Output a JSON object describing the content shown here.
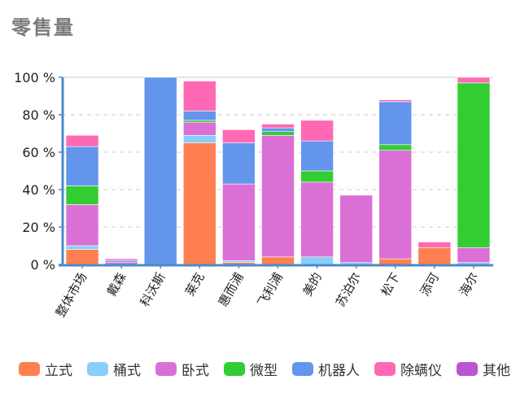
{
  "title": "零售量",
  "chart_data": {
    "type": "bar",
    "stacked": true,
    "categories": [
      "整体市场",
      "戴森",
      "科沃斯",
      "莱克",
      "惠而浦",
      "飞利浦",
      "美的",
      "苏泊尔",
      "松下",
      "添可",
      "海尔"
    ],
    "ylim": [
      0,
      100
    ],
    "ytick_labels": [
      "0 %",
      "20 %",
      "40 %",
      "60 %",
      "80 %",
      "100 %"
    ],
    "grid": true,
    "legend_position": "bottom",
    "series": [
      {
        "name": "立式",
        "color": "#FF7F50",
        "values": [
          8,
          0,
          0,
          65,
          1,
          4,
          0,
          0,
          3,
          9,
          0
        ]
      },
      {
        "name": "桶式",
        "color": "#87CEFA",
        "values": [
          2,
          0,
          0,
          4,
          1,
          0,
          4,
          1,
          0,
          0,
          1
        ]
      },
      {
        "name": "卧式",
        "color": "#DA70D6",
        "values": [
          22,
          1,
          0,
          7,
          41,
          65,
          40,
          36,
          58,
          0,
          8
        ]
      },
      {
        "name": "微型",
        "color": "#32CD32",
        "values": [
          10,
          0,
          0,
          1,
          0,
          2,
          6,
          0,
          3,
          0,
          88
        ]
      },
      {
        "name": "机器人",
        "color": "#6495ED",
        "values": [
          21,
          1,
          100,
          5,
          22,
          2,
          16,
          0,
          23,
          0,
          0
        ]
      },
      {
        "name": "除螨仪",
        "color": "#FF69B4",
        "values": [
          6,
          1,
          0,
          16,
          7,
          2,
          11,
          0,
          1,
          3,
          3
        ]
      },
      {
        "name": "其他",
        "color": "#BA55D3",
        "values": [
          0,
          0,
          0,
          0,
          0,
          0,
          0,
          0,
          0,
          0,
          0
        ]
      }
    ]
  }
}
